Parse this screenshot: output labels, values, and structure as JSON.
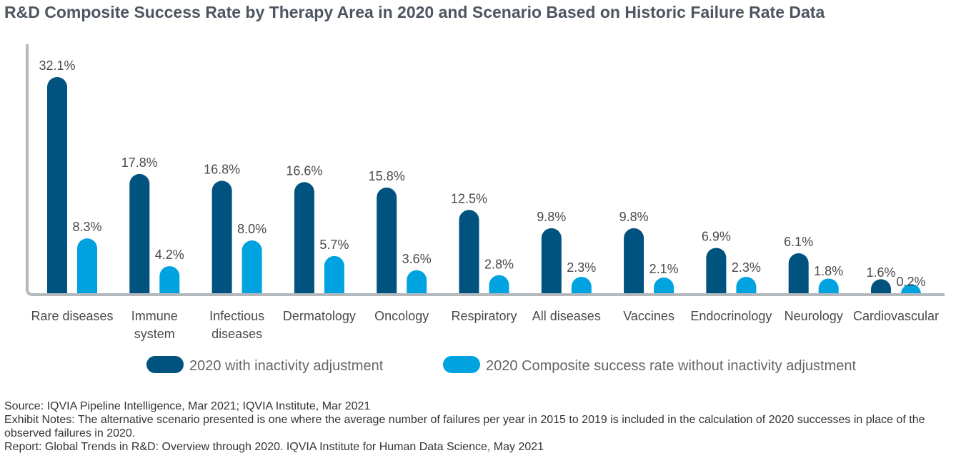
{
  "title": "R&D Composite Success Rate by Therapy Area in 2020 and Scenario Based on Historic Failure Rate Data",
  "colors": {
    "series1": "#00527f",
    "series2": "#00a3e0",
    "axis": "#b3b8bd"
  },
  "chart_data": {
    "type": "bar",
    "title": "R&D Composite Success Rate by Therapy Area in 2020 and Scenario Based on Historic Failure Rate Data",
    "xlabel": "",
    "ylabel": "",
    "ylim": [
      0,
      34
    ],
    "grid": false,
    "legend_placement": "bottom",
    "categories": [
      [
        "Rare diseases"
      ],
      [
        "Immune",
        "system"
      ],
      [
        "Infectious",
        "diseases"
      ],
      [
        "Dermatology"
      ],
      [
        "Oncology"
      ],
      [
        "Respiratory"
      ],
      [
        "All diseases"
      ],
      [
        "Vaccines"
      ],
      [
        "Endocrinology"
      ],
      [
        "Neurology"
      ],
      [
        "Cardiovascular"
      ]
    ],
    "series": [
      {
        "name": "2020 with inactivity adjustment",
        "values": [
          32.1,
          17.8,
          16.8,
          16.6,
          15.8,
          12.5,
          9.8,
          9.8,
          6.9,
          6.1,
          1.6
        ],
        "labels": [
          "32.1%",
          "17.8%",
          "16.8%",
          "16.6%",
          "15.8%",
          "12.5%",
          "9.8%",
          "9.8%",
          "6.9%",
          "6.1%",
          "1.6%"
        ]
      },
      {
        "name": "2020 Composite success rate without inactivity adjustment",
        "values": [
          8.3,
          4.2,
          8.0,
          5.7,
          3.6,
          2.8,
          2.3,
          2.1,
          2.3,
          1.8,
          0.2
        ],
        "labels": [
          "8.3%",
          "4.2%",
          "8.0%",
          "5.7%",
          "3.6%",
          "2.8%",
          "2.3%",
          "2.1%",
          "2.3%",
          "1.8%",
          "0.2%"
        ]
      }
    ]
  },
  "notes": {
    "source": "Source: IQVIA Pipeline Intelligence, Mar 2021; IQVIA Institute, Mar 2021",
    "exhibit_notes": "Exhibit Notes: The alternative scenario presented is one where the average number of failures per year in 2015 to 2019 is included in the calculation of 2020 successes in place of the observed failures in 2020.",
    "report": "Report: Global Trends in R&D: Overview through 2020. IQVIA Institute for Human Data Science, May 2021"
  }
}
